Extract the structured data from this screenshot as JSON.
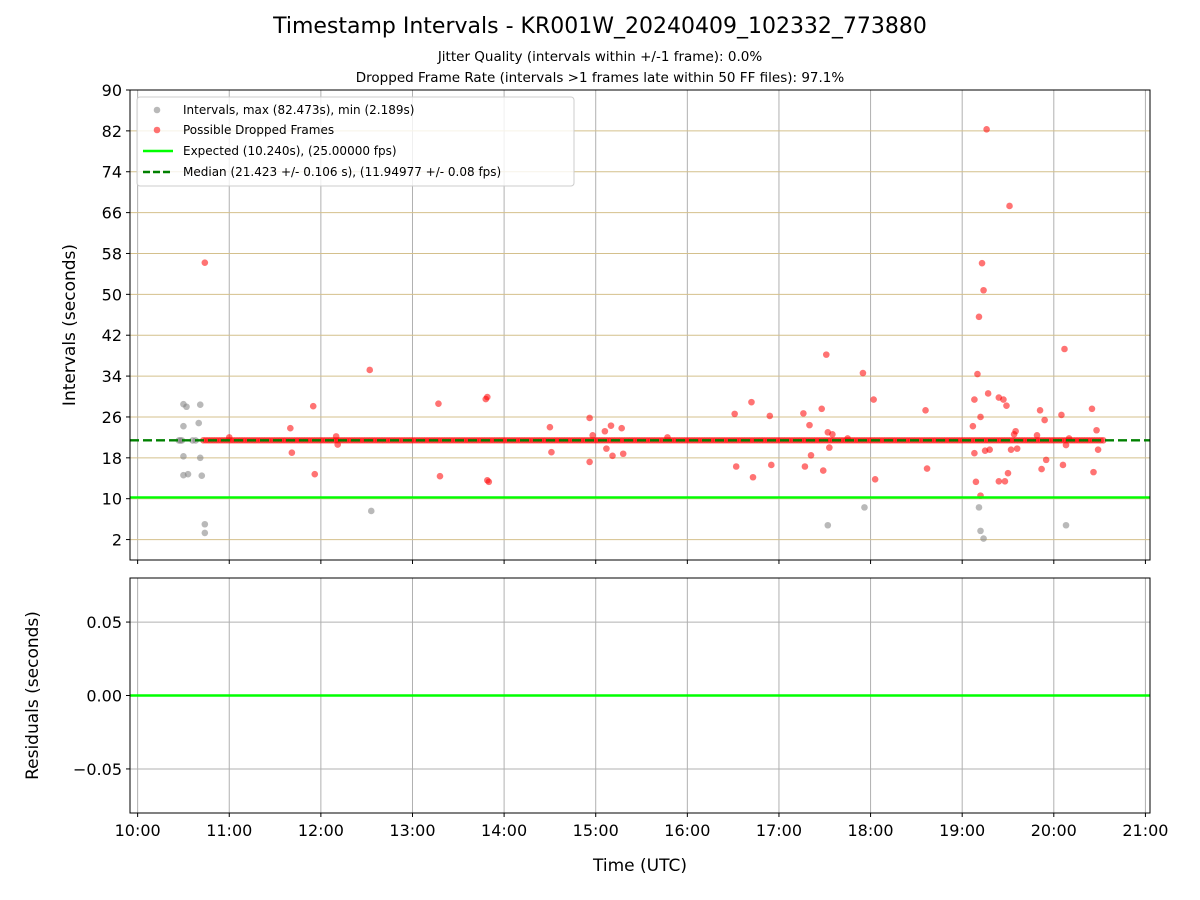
{
  "title": "Timestamp Intervals - KR001W_20240409_102332_773880",
  "subtitle_1": "Jitter Quality (intervals within +/-1 frame): 0.0%",
  "subtitle_2": "Dropped Frame Rate (intervals >1 frames late within 50 FF files): 97.1%",
  "colors": {
    "intervals": "#808080",
    "dropped": "#ff0000",
    "expected": "#00ff00",
    "median": "#008000",
    "hgrid": "#d4c08c",
    "vgrid": "#b0b0b0"
  },
  "chart_data": [
    {
      "type": "scatter",
      "xlabel": "Time (UTC)",
      "ylabel": "Intervals (seconds)",
      "xlim": [
        "09:55",
        "21:03"
      ],
      "ylim": [
        -2,
        90
      ],
      "xticks": [
        "10:00",
        "11:00",
        "12:00",
        "13:00",
        "14:00",
        "15:00",
        "16:00",
        "17:00",
        "18:00",
        "19:00",
        "20:00",
        "21:00"
      ],
      "yticks": [
        2,
        10,
        18,
        26,
        34,
        42,
        50,
        58,
        66,
        74,
        82,
        90
      ],
      "grid": true,
      "legend_position": "upper-left",
      "series": [
        {
          "name": "Intervals, max (82.473s), min (2.189s)",
          "marker": "circle",
          "points": [
            [
              "10:27",
              21.4
            ],
            [
              "10:28",
              21.4
            ],
            [
              "10:29",
              21.4
            ],
            [
              "10:30",
              28.5
            ],
            [
              "10:30",
              24.2
            ],
            [
              "10:30",
              18.3
            ],
            [
              "10:30",
              14.6
            ],
            [
              "10:32",
              28
            ],
            [
              "10:33",
              14.8
            ],
            [
              "10:36",
              21.4
            ],
            [
              "10:38",
              21.4
            ],
            [
              "10:40",
              24.8
            ],
            [
              "10:41",
              18
            ],
            [
              "10:41",
              28.4
            ],
            [
              "10:42",
              14.5
            ],
            [
              "10:44",
              5
            ],
            [
              "10:44",
              3.3
            ],
            [
              "12:33",
              7.6
            ],
            [
              "17:32",
              4.8
            ],
            [
              "17:56",
              8.3
            ],
            [
              "19:11",
              8.3
            ],
            [
              "19:12",
              3.7
            ],
            [
              "19:14",
              2.2
            ],
            [
              "20:08",
              4.8
            ]
          ]
        },
        {
          "name": "Possible Dropped Frames",
          "marker": "circle",
          "dense_band": {
            "start": "10:43",
            "end": "20:33",
            "value": 21.423
          },
          "points": [
            [
              "10:44",
              56.2
            ],
            [
              "11:00",
              22
            ],
            [
              "11:40",
              23.8
            ],
            [
              "11:41",
              19
            ],
            [
              "11:55",
              28.1
            ],
            [
              "11:56",
              14.8
            ],
            [
              "12:10",
              22.2
            ],
            [
              "12:11",
              20.6
            ],
            [
              "12:32",
              35.2
            ],
            [
              "13:17",
              28.6
            ],
            [
              "13:18",
              14.4
            ],
            [
              "13:48",
              29.5
            ],
            [
              "13:49",
              29.9
            ],
            [
              "13:49",
              13.6
            ],
            [
              "13:50",
              13.3
            ],
            [
              "14:30",
              24
            ],
            [
              "14:31",
              19.1
            ],
            [
              "14:56",
              25.8
            ],
            [
              "14:56",
              17.2
            ],
            [
              "14:58",
              22.4
            ],
            [
              "15:06",
              23.2
            ],
            [
              "15:07",
              19.8
            ],
            [
              "15:10",
              24.3
            ],
            [
              "15:11",
              18.4
            ],
            [
              "15:17",
              23.8
            ],
            [
              "15:18",
              18.8
            ],
            [
              "15:47",
              22
            ],
            [
              "16:31",
              26.6
            ],
            [
              "16:32",
              16.3
            ],
            [
              "16:42",
              28.9
            ],
            [
              "16:43",
              14.2
            ],
            [
              "16:54",
              26.2
            ],
            [
              "16:55",
              16.6
            ],
            [
              "17:16",
              26.7
            ],
            [
              "17:17",
              16.3
            ],
            [
              "17:20",
              24.4
            ],
            [
              "17:21",
              18.5
            ],
            [
              "17:28",
              27.6
            ],
            [
              "17:29",
              15.5
            ],
            [
              "17:31",
              38.2
            ],
            [
              "17:32",
              23
            ],
            [
              "17:33",
              20
            ],
            [
              "17:35",
              22.6
            ],
            [
              "17:45",
              21.8
            ],
            [
              "17:55",
              34.6
            ],
            [
              "18:02",
              29.4
            ],
            [
              "18:03",
              13.8
            ],
            [
              "18:36",
              27.3
            ],
            [
              "18:37",
              15.9
            ],
            [
              "19:07",
              24.2
            ],
            [
              "19:08",
              29.4
            ],
            [
              "19:08",
              18.9
            ],
            [
              "19:09",
              13.3
            ],
            [
              "19:10",
              34.4
            ],
            [
              "19:11",
              45.6
            ],
            [
              "19:12",
              26
            ],
            [
              "19:12",
              10.6
            ],
            [
              "19:13",
              56.1
            ],
            [
              "19:14",
              50.8
            ],
            [
              "19:15",
              19.4
            ],
            [
              "19:16",
              82.3
            ],
            [
              "19:17",
              30.6
            ],
            [
              "19:18",
              19.6
            ],
            [
              "19:24",
              29.8
            ],
            [
              "19:24",
              13.4
            ],
            [
              "19:27",
              29.4
            ],
            [
              "19:28",
              13.4
            ],
            [
              "19:29",
              28.2
            ],
            [
              "19:30",
              15
            ],
            [
              "19:31",
              67.3
            ],
            [
              "19:32",
              19.6
            ],
            [
              "19:34",
              22.6
            ],
            [
              "19:35",
              23.2
            ],
            [
              "19:36",
              19.8
            ],
            [
              "19:49",
              22.4
            ],
            [
              "19:51",
              27.3
            ],
            [
              "19:52",
              15.8
            ],
            [
              "19:54",
              25.4
            ],
            [
              "19:55",
              17.6
            ],
            [
              "20:05",
              26.4
            ],
            [
              "20:06",
              16.6
            ],
            [
              "20:07",
              39.3
            ],
            [
              "20:08",
              20.5
            ],
            [
              "20:10",
              21.8
            ],
            [
              "20:25",
              27.6
            ],
            [
              "20:26",
              15.2
            ],
            [
              "20:28",
              23.4
            ],
            [
              "20:29",
              19.6
            ]
          ]
        },
        {
          "name": "Expected (10.240s), (25.00000 fps)",
          "type": "hline",
          "value": 10.24,
          "style": "solid"
        },
        {
          "name": "Median (21.423 +/- 0.106 s), (11.94977 +/- 0.08 fps)",
          "type": "hline",
          "value": 21.423,
          "style": "dashed"
        }
      ]
    },
    {
      "type": "line",
      "xlabel": "Time (UTC)",
      "ylabel": "Residuals (seconds)",
      "xlim": [
        "09:55",
        "21:03"
      ],
      "ylim": [
        -0.08,
        0.08
      ],
      "xticks": [
        "10:00",
        "11:00",
        "12:00",
        "13:00",
        "14:00",
        "15:00",
        "16:00",
        "17:00",
        "18:00",
        "19:00",
        "20:00",
        "21:00"
      ],
      "yticks": [
        "0.05",
        "0.00",
        "−0.05"
      ],
      "ytick_values": [
        0.05,
        0.0,
        -0.05
      ],
      "grid": true,
      "series": [
        {
          "type": "hline",
          "value": 0.0,
          "style": "solid"
        }
      ]
    }
  ]
}
